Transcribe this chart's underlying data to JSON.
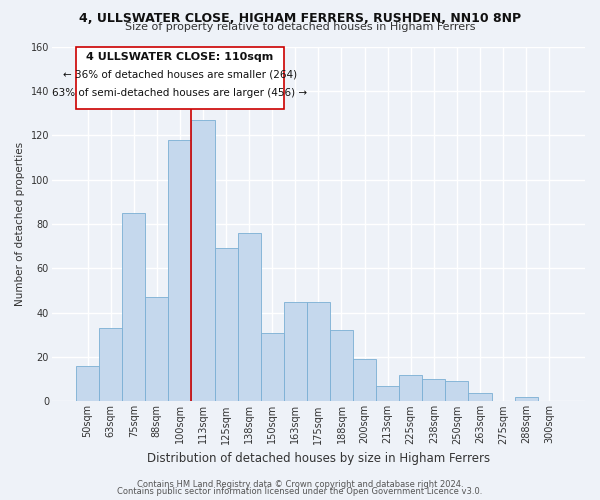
{
  "title": "4, ULLSWATER CLOSE, HIGHAM FERRERS, RUSHDEN, NN10 8NP",
  "subtitle": "Size of property relative to detached houses in Higham Ferrers",
  "xlabel": "Distribution of detached houses by size in Higham Ferrers",
  "ylabel": "Number of detached properties",
  "bar_color": "#c5d8ed",
  "bar_edge_color": "#7aafd4",
  "categories": [
    "50sqm",
    "63sqm",
    "75sqm",
    "88sqm",
    "100sqm",
    "113sqm",
    "125sqm",
    "138sqm",
    "150sqm",
    "163sqm",
    "175sqm",
    "188sqm",
    "200sqm",
    "213sqm",
    "225sqm",
    "238sqm",
    "250sqm",
    "263sqm",
    "275sqm",
    "288sqm",
    "300sqm"
  ],
  "values": [
    16,
    33,
    85,
    47,
    118,
    127,
    69,
    76,
    31,
    45,
    45,
    32,
    19,
    7,
    12,
    10,
    9,
    4,
    0,
    2,
    0
  ],
  "ylim": [
    0,
    160
  ],
  "yticks": [
    0,
    20,
    40,
    60,
    80,
    100,
    120,
    140,
    160
  ],
  "vline_index": 5,
  "vline_color": "#cc0000",
  "annotation_title": "4 ULLSWATER CLOSE: 110sqm",
  "annotation_line1": "← 36% of detached houses are smaller (264)",
  "annotation_line2": "63% of semi-detached houses are larger (456) →",
  "annotation_box_color": "#ffffff",
  "annotation_box_edge": "#cc0000",
  "footer1": "Contains HM Land Registry data © Crown copyright and database right 2024.",
  "footer2": "Contains public sector information licensed under the Open Government Licence v3.0.",
  "background_color": "#eef2f8",
  "grid_color": "#ffffff",
  "title_fontsize": 9,
  "subtitle_fontsize": 8,
  "xlabel_fontsize": 8.5,
  "ylabel_fontsize": 7.5,
  "tick_fontsize": 7,
  "footer_fontsize": 6
}
